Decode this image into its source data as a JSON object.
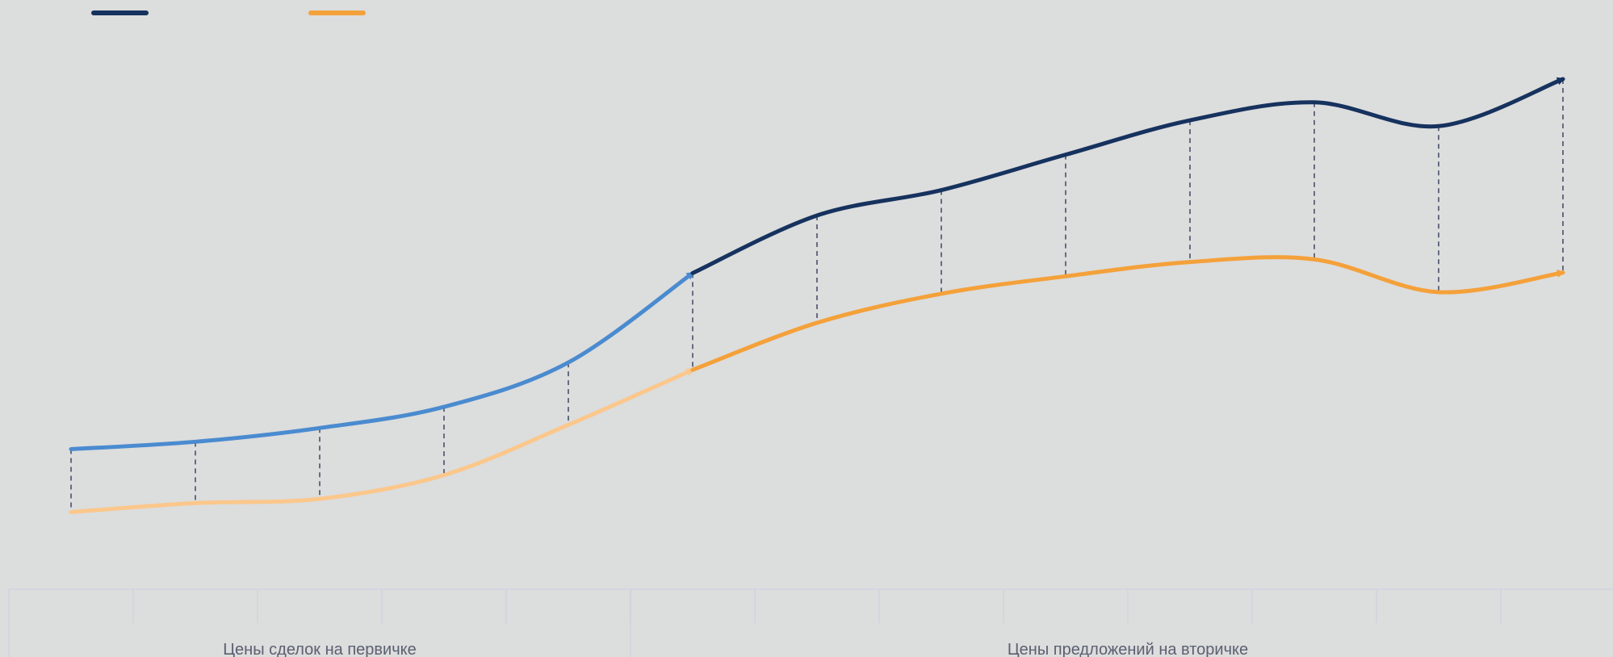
{
  "chart_data": {
    "type": "line",
    "title": "",
    "xlabel": "",
    "ylabel": "",
    "categories": [
      "",
      "",
      "",
      "",
      "",
      "",
      "",
      "",
      "",
      "",
      "",
      "",
      ""
    ],
    "section_labels": [
      "Цены сделок на первичке",
      "Цены предложений на вторичке"
    ],
    "section_breaks": [
      5
    ],
    "legend_position": "top-left",
    "grid": false,
    "ylim": [
      0,
      100
    ],
    "series": [
      {
        "values": [
          24.2,
          25.6,
          28.2,
          32.2,
          40.6,
          57.5,
          68.4,
          73.2,
          79.9,
          86.4,
          89.8,
          85.3,
          94.2
        ],
        "colors": {
          "segment_1": "#4a8bd0",
          "segment_2": "#16325e"
        }
      },
      {
        "values": [
          12.3,
          14.0,
          14.8,
          19.3,
          28.8,
          39.2,
          48.1,
          53.6,
          56.9,
          59.6,
          60.1,
          53.9,
          57.6
        ],
        "colors": {
          "segment_1": "#fbc78b",
          "segment_2": "#f4a13a"
        }
      }
    ]
  }
}
